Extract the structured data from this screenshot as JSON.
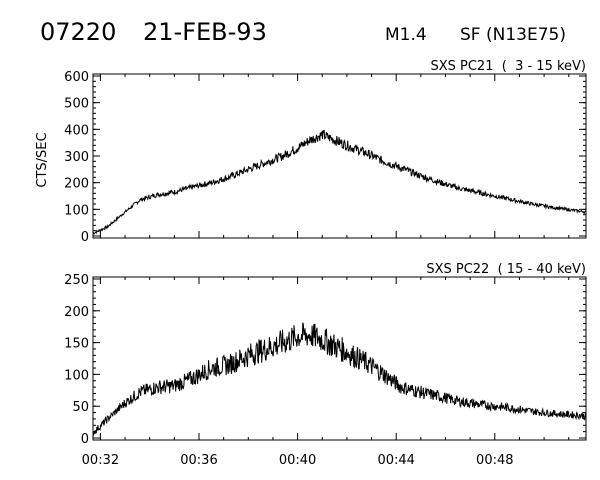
{
  "header": {
    "event_id": "07220",
    "date": "21-FEB-93",
    "goes_class": "M1.4",
    "flare_info": "SF (N13E75)"
  },
  "colors": {
    "axis": "#000000",
    "trace": "#000000",
    "background": "#ffffff"
  },
  "chart_data": [
    {
      "type": "line",
      "title": "SXS PC21  (  3 - 15 keV)",
      "ylabel": "CTS/SEC",
      "xlabel": "",
      "ylim": [
        0,
        600
      ],
      "yticks": [
        0,
        100,
        200,
        300,
        400,
        500,
        600
      ],
      "xlim_minutes": [
        31.7,
        51.7
      ],
      "grid": false,
      "series": [
        {
          "x_minutes": [
            31.7,
            32.3,
            33.0,
            33.6,
            34.3,
            35.0,
            35.8,
            36.5,
            37.2,
            38.0,
            38.7,
            39.4,
            40.0,
            40.5,
            41.0,
            41.5,
            42.0,
            42.8,
            43.5,
            44.2,
            45.0,
            45.8,
            46.5,
            47.5,
            48.5,
            49.5,
            50.5,
            51.7
          ],
          "values": [
            10,
            35,
            90,
            135,
            155,
            165,
            185,
            200,
            220,
            250,
            275,
            300,
            330,
            360,
            380,
            360,
            340,
            310,
            280,
            255,
            225,
            200,
            180,
            160,
            140,
            120,
            105,
            90
          ],
          "noise": 15
        }
      ]
    },
    {
      "type": "line",
      "title": "SXS PC22  ( 15 - 40 keV)",
      "ylabel": "",
      "xlabel": "",
      "ylim": [
        0,
        250
      ],
      "yticks": [
        0,
        50,
        100,
        150,
        200,
        250
      ],
      "xlim_minutes": [
        31.7,
        51.7
      ],
      "xticks": [
        "00:32",
        "00:36",
        "00:40",
        "00:44",
        "00:48"
      ],
      "xtick_minutes": [
        32,
        36,
        40,
        44,
        48
      ],
      "grid": false,
      "series": [
        {
          "x_minutes": [
            31.7,
            32.3,
            33.0,
            33.6,
            34.3,
            35.0,
            35.8,
            36.5,
            37.2,
            38.0,
            38.7,
            39.4,
            40.0,
            40.5,
            41.0,
            41.5,
            42.0,
            42.8,
            43.5,
            44.2,
            45.0,
            45.8,
            46.5,
            47.5,
            48.5,
            49.5,
            50.5,
            51.7
          ],
          "values": [
            8,
            30,
            55,
            72,
            80,
            82,
            95,
            110,
            115,
            130,
            140,
            150,
            160,
            162,
            155,
            145,
            135,
            118,
            100,
            80,
            72,
            65,
            58,
            52,
            48,
            42,
            38,
            35
          ],
          "noise": 16
        }
      ]
    }
  ]
}
